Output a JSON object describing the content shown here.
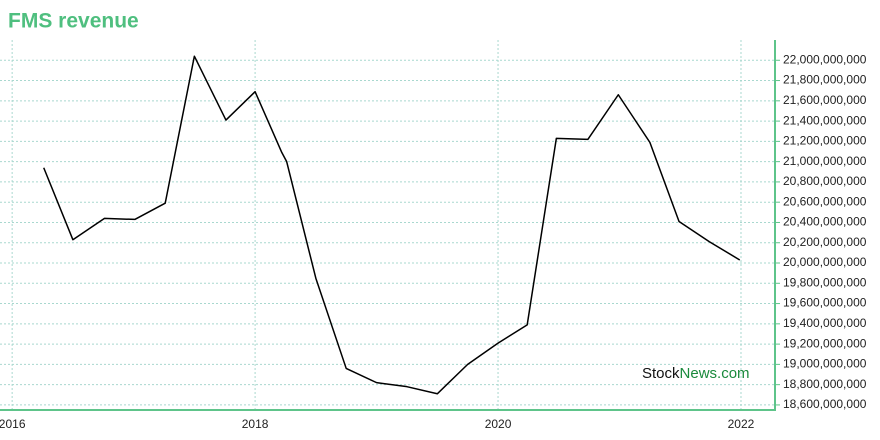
{
  "chart_data": {
    "type": "line",
    "title": "FMS revenue",
    "x": [
      2016.26,
      2016.5,
      2016.76,
      2017.01,
      2017.26,
      2017.5,
      2017.76,
      2018.0,
      2018.22,
      2018.26,
      2018.5,
      2018.75,
      2019.0,
      2019.25,
      2019.5,
      2019.75,
      2020.0,
      2020.24,
      2020.48,
      2020.74,
      2020.99,
      2021.25,
      2021.49,
      2021.74,
      2021.99
    ],
    "series": [
      {
        "name": "FMS revenue",
        "color": "#000000",
        "values": [
          20940000000,
          20230000000,
          20440000000,
          20430000000,
          20590000000,
          22040000000,
          21410000000,
          21690000000,
          21090000000,
          21000000000,
          19850000000,
          18960000000,
          18820000000,
          18780000000,
          18710000000,
          19000000000,
          19210000000,
          19390000000,
          21230000000,
          21220000000,
          21660000000,
          21190000000,
          20410000000,
          20210000000,
          20030000000
        ]
      }
    ],
    "xlim": [
      2015.9,
      2022.28
    ],
    "xticks": [
      2016,
      2018,
      2020,
      2022
    ],
    "ylim": [
      18550000000,
      22200000000
    ],
    "yticks": [
      {
        "value": 18600000000,
        "label": "18,600,000,000"
      },
      {
        "value": 18800000000,
        "label": "18,800,000,000"
      },
      {
        "value": 19000000000,
        "label": "19,000,000,000"
      },
      {
        "value": 19200000000,
        "label": "19,200,000,000"
      },
      {
        "value": 19400000000,
        "label": "19,400,000,000"
      },
      {
        "value": 19600000000,
        "label": "19,600,000,000"
      },
      {
        "value": 19800000000,
        "label": "19,800,000,000"
      },
      {
        "value": 20000000000,
        "label": "20,000,000,000"
      },
      {
        "value": 20200000000,
        "label": "20,200,000,000"
      },
      {
        "value": 20400000000,
        "label": "20,400,000,000"
      },
      {
        "value": 20600000000,
        "label": "20,600,000,000"
      },
      {
        "value": 20800000000,
        "label": "20,800,000,000"
      },
      {
        "value": 21000000000,
        "label": "21,000,000,000"
      },
      {
        "value": 21200000000,
        "label": "21,200,000,000"
      },
      {
        "value": 21400000000,
        "label": "21,400,000,000"
      },
      {
        "value": 21600000000,
        "label": "21,600,000,000"
      },
      {
        "value": 21800000000,
        "label": "21,800,000,000"
      },
      {
        "value": 22000000000,
        "label": "22,000,000,000"
      }
    ],
    "y_axis_side": "right",
    "grid": true,
    "watermark": [
      "Stock",
      "News.com"
    ]
  }
}
